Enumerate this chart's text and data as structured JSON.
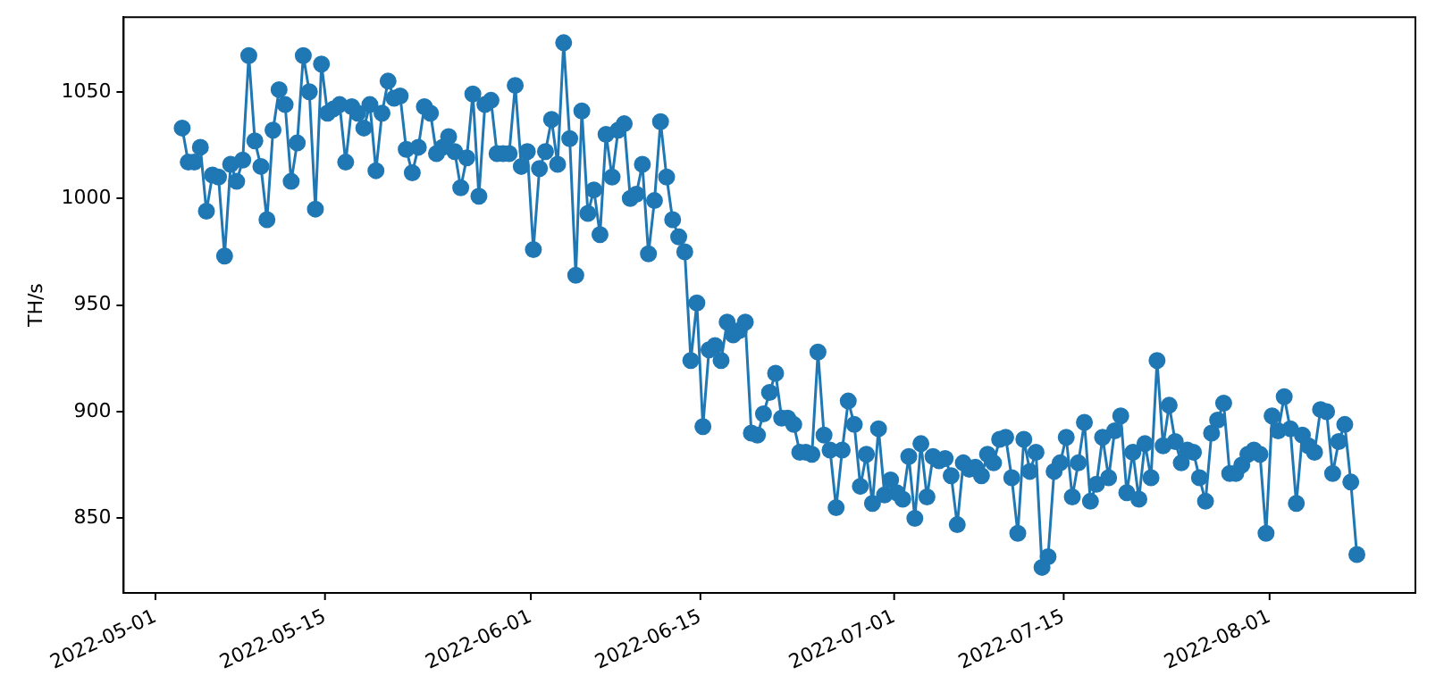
{
  "chart_data": {
    "type": "line",
    "ylabel": "TH/s",
    "color": "#1f77b4",
    "marker": "circle",
    "x": [
      "2022-05-03T05:00",
      "2022-05-03T17:00",
      "2022-05-04T05:00",
      "2022-05-04T17:00",
      "2022-05-05T05:00",
      "2022-05-05T17:00",
      "2022-05-06T05:00",
      "2022-05-06T17:00",
      "2022-05-07T05:00",
      "2022-05-07T17:00",
      "2022-05-08T05:00",
      "2022-05-08T17:00",
      "2022-05-09T05:00",
      "2022-05-09T17:00",
      "2022-05-10T05:00",
      "2022-05-10T17:00",
      "2022-05-11T05:00",
      "2022-05-11T17:00",
      "2022-05-12T05:00",
      "2022-05-12T17:00",
      "2022-05-13T05:00",
      "2022-05-13T17:00",
      "2022-05-14T05:00",
      "2022-05-14T17:00",
      "2022-05-15T05:00",
      "2022-05-15T17:00",
      "2022-05-16T05:00",
      "2022-05-16T17:00",
      "2022-05-17T05:00",
      "2022-05-17T17:00",
      "2022-05-18T05:00",
      "2022-05-18T17:00",
      "2022-05-19T05:00",
      "2022-05-19T17:00",
      "2022-05-20T05:00",
      "2022-05-20T17:00",
      "2022-05-21T05:00",
      "2022-05-21T17:00",
      "2022-05-22T05:00",
      "2022-05-22T17:00",
      "2022-05-23T05:00",
      "2022-05-23T17:00",
      "2022-05-24T05:00",
      "2022-05-24T17:00",
      "2022-05-25T05:00",
      "2022-05-25T17:00",
      "2022-05-26T05:00",
      "2022-05-26T17:00",
      "2022-05-27T05:00",
      "2022-05-27T17:00",
      "2022-05-28T05:00",
      "2022-05-28T17:00",
      "2022-05-29T05:00",
      "2022-05-29T17:00",
      "2022-05-30T05:00",
      "2022-05-30T17:00",
      "2022-05-31T05:00",
      "2022-05-31T17:00",
      "2022-06-01T05:00",
      "2022-06-01T17:00",
      "2022-06-02T05:00",
      "2022-06-02T17:00",
      "2022-06-03T05:00",
      "2022-06-03T17:00",
      "2022-06-04T05:00",
      "2022-06-04T17:00",
      "2022-06-05T05:00",
      "2022-06-05T17:00",
      "2022-06-06T05:00",
      "2022-06-06T17:00",
      "2022-06-07T05:00",
      "2022-06-07T17:00",
      "2022-06-08T05:00",
      "2022-06-08T17:00",
      "2022-06-09T05:00",
      "2022-06-09T17:00",
      "2022-06-10T05:00",
      "2022-06-10T17:00",
      "2022-06-11T05:00",
      "2022-06-11T17:00",
      "2022-06-12T05:00",
      "2022-06-12T17:00",
      "2022-06-13T05:00",
      "2022-06-13T17:00",
      "2022-06-14T05:00",
      "2022-06-14T17:00",
      "2022-06-15T05:00",
      "2022-06-15T17:00",
      "2022-06-16T05:00",
      "2022-06-16T17:00",
      "2022-06-17T05:00",
      "2022-06-17T17:00",
      "2022-06-18T05:00",
      "2022-06-18T17:00",
      "2022-06-19T05:00",
      "2022-06-19T17:00",
      "2022-06-20T05:00",
      "2022-06-20T17:00",
      "2022-06-21T05:00",
      "2022-06-21T17:00",
      "2022-06-22T05:00",
      "2022-06-22T17:00",
      "2022-06-23T05:00",
      "2022-06-23T17:00",
      "2022-06-24T05:00",
      "2022-06-24T17:00",
      "2022-06-25T05:00",
      "2022-06-25T17:00",
      "2022-06-26T05:00",
      "2022-06-26T17:00",
      "2022-06-27T05:00",
      "2022-06-27T17:00",
      "2022-06-28T05:00",
      "2022-06-28T17:00",
      "2022-06-29T05:00",
      "2022-06-29T17:00",
      "2022-06-30T05:00",
      "2022-06-30T17:00",
      "2022-07-01T05:00",
      "2022-07-01T17:00",
      "2022-07-02T05:00",
      "2022-07-02T17:00",
      "2022-07-03T05:00",
      "2022-07-03T17:00",
      "2022-07-04T05:00",
      "2022-07-04T17:00",
      "2022-07-05T05:00",
      "2022-07-05T17:00",
      "2022-07-06T05:00",
      "2022-07-06T17:00",
      "2022-07-07T05:00",
      "2022-07-07T17:00",
      "2022-07-08T05:00",
      "2022-07-08T17:00",
      "2022-07-09T05:00",
      "2022-07-09T17:00",
      "2022-07-10T05:00",
      "2022-07-10T17:00",
      "2022-07-11T05:00",
      "2022-07-11T17:00",
      "2022-07-12T05:00",
      "2022-07-12T17:00",
      "2022-07-13T05:00",
      "2022-07-13T17:00",
      "2022-07-14T05:00",
      "2022-07-14T17:00",
      "2022-07-15T05:00",
      "2022-07-15T17:00",
      "2022-07-16T05:00",
      "2022-07-16T17:00",
      "2022-07-17T05:00",
      "2022-07-17T17:00",
      "2022-07-18T05:00",
      "2022-07-18T17:00",
      "2022-07-19T05:00",
      "2022-07-19T17:00",
      "2022-07-20T05:00",
      "2022-07-20T17:00",
      "2022-07-21T05:00",
      "2022-07-21T17:00",
      "2022-07-22T05:00",
      "2022-07-22T17:00",
      "2022-07-23T05:00",
      "2022-07-23T17:00",
      "2022-07-24T05:00",
      "2022-07-24T17:00",
      "2022-07-25T05:00",
      "2022-07-25T17:00",
      "2022-07-26T05:00",
      "2022-07-26T17:00",
      "2022-07-27T05:00",
      "2022-07-27T17:00",
      "2022-07-28T05:00",
      "2022-07-28T17:00",
      "2022-07-29T05:00",
      "2022-07-29T17:00",
      "2022-07-30T05:00",
      "2022-07-30T17:00",
      "2022-07-31T05:00",
      "2022-07-31T17:00",
      "2022-08-01T05:00",
      "2022-08-01T17:00",
      "2022-08-02T05:00",
      "2022-08-02T17:00",
      "2022-08-03T05:00",
      "2022-08-03T17:00",
      "2022-08-04T05:00",
      "2022-08-04T17:00",
      "2022-08-05T05:00",
      "2022-08-05T17:00",
      "2022-08-06T05:00",
      "2022-08-06T17:00",
      "2022-08-07T05:00",
      "2022-08-07T17:00",
      "2022-08-08T05:00"
    ],
    "values": [
      1033,
      1017,
      1017,
      1024,
      994,
      1011,
      1010,
      973,
      1016,
      1008,
      1018,
      1067,
      1027,
      1015,
      990,
      1032,
      1051,
      1044,
      1008,
      1026,
      1067,
      1050,
      995,
      1063,
      1040,
      1042,
      1044,
      1017,
      1043,
      1040,
      1033,
      1044,
      1013,
      1040,
      1055,
      1047,
      1048,
      1023,
      1012,
      1024,
      1043,
      1040,
      1021,
      1024,
      1029,
      1022,
      1005,
      1019,
      1049,
      1001,
      1044,
      1046,
      1021,
      1021,
      1021,
      1053,
      1015,
      1022,
      976,
      1014,
      1022,
      1037,
      1016,
      1073,
      1028,
      964,
      1041,
      993,
      1004,
      983,
      1030,
      1010,
      1032,
      1035,
      1000,
      1002,
      1016,
      974,
      999,
      1036,
      1010,
      990,
      982,
      975,
      924,
      951,
      893,
      929,
      931,
      924,
      942,
      936,
      938,
      942,
      890,
      889,
      899,
      909,
      918,
      897,
      897,
      894,
      881,
      881,
      880,
      928,
      889,
      882,
      855,
      882,
      905,
      894,
      865,
      880,
      857,
      892,
      861,
      868,
      862,
      859,
      879,
      850,
      885,
      860,
      879,
      877,
      878,
      870,
      847,
      876,
      873,
      874,
      870,
      880,
      876,
      887,
      888,
      869,
      843,
      887,
      872,
      881,
      827,
      832,
      872,
      876,
      888,
      860,
      876,
      895,
      858,
      866,
      888,
      869,
      891,
      898,
      862,
      881,
      859,
      885,
      869,
      924,
      884,
      903,
      886,
      876,
      882,
      881,
      869,
      858,
      890,
      896,
      904,
      871,
      871,
      875,
      880,
      882,
      880,
      843,
      898,
      891,
      907,
      892,
      857,
      889,
      884,
      881,
      901,
      900,
      871,
      886,
      894,
      867,
      833
    ],
    "xlim": [
      "2022-04-28T09:00",
      "2022-08-13T01:00"
    ],
    "ylim": [
      815,
      1085
    ],
    "xticks": [
      "2022-05-01",
      "2022-05-15",
      "2022-06-01",
      "2022-06-15",
      "2022-07-01",
      "2022-07-15",
      "2022-08-01"
    ],
    "yticks": [
      850,
      900,
      950,
      1000,
      1050
    ]
  }
}
